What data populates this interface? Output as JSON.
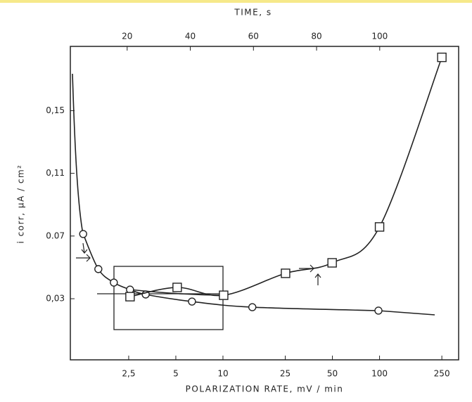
{
  "chart_data": {
    "type": "scatter",
    "x_label": "POLARIZATION RATE, mV / min",
    "x2_label": "TIME, s",
    "y_label": "i corr, μA / cm²",
    "xscale": "log",
    "xlim": [
      1.06,
      320
    ],
    "xticks": [
      {
        "value": 2.5,
        "label": "2,5"
      },
      5,
      10,
      25,
      50,
      100,
      250
    ],
    "x2lim": [
      2,
      125
    ],
    "x2ticks": [
      20,
      40,
      60,
      80,
      100
    ],
    "ylim": [
      -0.009,
      0.191
    ],
    "yticks": [
      {
        "value": 0.03,
        "label": "0,03"
      },
      {
        "value": 0.07,
        "label": "0.07"
      },
      {
        "value": 0.11,
        "label": "0,11"
      },
      {
        "value": 0.15,
        "label": "0,15"
      }
    ],
    "series": [
      {
        "marker": "circle",
        "color": "#222",
        "x": [
          1.28,
          1.6,
          2.01,
          2.55,
          3.21,
          6.34,
          15.4,
          98.4
        ],
        "values": [
          0.0713,
          0.0489,
          0.0403,
          0.0358,
          0.0327,
          0.0282,
          0.0246,
          0.0224
        ]
      },
      {
        "marker": "square",
        "color": "#222",
        "x": [
          2.55,
          5.1,
          10.1,
          25.1,
          49.8,
          100,
          250
        ],
        "values": [
          0.0313,
          0.0372,
          0.0322,
          0.0462,
          0.0529,
          0.0758,
          0.184
        ]
      }
    ]
  }
}
